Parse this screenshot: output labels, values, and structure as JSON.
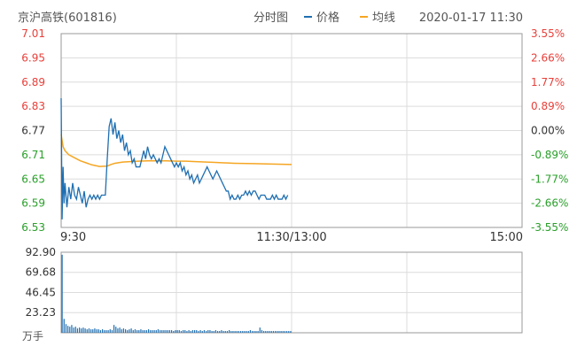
{
  "header": {
    "title": "京沪高铁(601816)",
    "view_label": "分时图",
    "legend_price": "价格",
    "legend_avg": "均线",
    "timestamp": "2020-01-17 11:30"
  },
  "colors": {
    "price_line": "#1f6fb2",
    "avg_line": "#f5a623",
    "up": "#e8403a",
    "down": "#2aa02a",
    "neutral": "#333333",
    "volume": "#1f6fb2",
    "grid": "#dcdcdc",
    "frame": "#999999"
  },
  "chart_data": [
    {
      "type": "line",
      "subtype": "intraday-timeshare",
      "ylim": [
        6.53,
        7.01
      ],
      "y_ticks": [
        "7.01",
        "6.95",
        "6.89",
        "6.83",
        "6.77",
        "6.71",
        "6.65",
        "6.59",
        "6.53"
      ],
      "y_ticks_right": [
        "3.55%",
        "2.66%",
        "1.77%",
        "0.89%",
        "0.00%",
        "-0.89%",
        "-1.77%",
        "-2.66%",
        "-3.55%"
      ],
      "x_tick_labels": [
        "9:30",
        "11:30/13:00",
        "15:00"
      ],
      "x_minutes_total": 240,
      "series": [
        {
          "name": "价格",
          "minutes": [
            0,
            0.5,
            1,
            1.5,
            2,
            3,
            4,
            5,
            6,
            7,
            8,
            9,
            10,
            11,
            12,
            13,
            14,
            15,
            16,
            17,
            18,
            19,
            20,
            21,
            22,
            23,
            24,
            25,
            26,
            27,
            28,
            29,
            30,
            31,
            32,
            33,
            34,
            35,
            36,
            37,
            38,
            39,
            40,
            41,
            42,
            43,
            44,
            45,
            46,
            47,
            48,
            49,
            50,
            51,
            52,
            53,
            54,
            55,
            56,
            57,
            58,
            59,
            60,
            61,
            62,
            63,
            64,
            65,
            66,
            67,
            68,
            69,
            70,
            71,
            72,
            73,
            74,
            75,
            76,
            77,
            78,
            79,
            80,
            81,
            82,
            83,
            84,
            85,
            86,
            87,
            88,
            89,
            90,
            91,
            92,
            93,
            94,
            95,
            96,
            97,
            98,
            99,
            100,
            101,
            102,
            103,
            104,
            105,
            106,
            107,
            108,
            109,
            110,
            111,
            112,
            113,
            114,
            115,
            116,
            117,
            118,
            119,
            120
          ],
          "values": [
            6.85,
            6.55,
            6.68,
            6.59,
            6.64,
            6.58,
            6.63,
            6.6,
            6.64,
            6.61,
            6.6,
            6.63,
            6.61,
            6.59,
            6.62,
            6.58,
            6.6,
            6.61,
            6.6,
            6.61,
            6.6,
            6.61,
            6.6,
            6.61,
            6.61,
            6.61,
            6.7,
            6.78,
            6.8,
            6.76,
            6.79,
            6.75,
            6.77,
            6.74,
            6.76,
            6.72,
            6.74,
            6.71,
            6.72,
            6.69,
            6.7,
            6.68,
            6.68,
            6.68,
            6.7,
            6.72,
            6.7,
            6.73,
            6.71,
            6.7,
            6.71,
            6.7,
            6.69,
            6.7,
            6.69,
            6.71,
            6.73,
            6.72,
            6.71,
            6.7,
            6.69,
            6.68,
            6.69,
            6.68,
            6.69,
            6.67,
            6.68,
            6.66,
            6.67,
            6.65,
            6.66,
            6.64,
            6.65,
            6.66,
            6.64,
            6.65,
            6.66,
            6.67,
            6.68,
            6.67,
            6.66,
            6.65,
            6.66,
            6.67,
            6.66,
            6.65,
            6.64,
            6.63,
            6.62,
            6.62,
            6.6,
            6.61,
            6.6,
            6.6,
            6.61,
            6.6,
            6.61,
            6.61,
            6.62,
            6.61,
            6.62,
            6.61,
            6.62,
            6.62,
            6.61,
            6.6,
            6.61,
            6.61,
            6.61,
            6.6,
            6.6,
            6.6,
            6.61,
            6.6,
            6.61,
            6.6,
            6.6,
            6.6,
            6.61,
            6.6,
            6.61
          ]
        },
        {
          "name": "均线",
          "minutes": [
            0,
            1,
            2,
            4,
            6,
            8,
            10,
            13,
            16,
            20,
            24,
            26,
            28,
            32,
            36,
            40,
            45,
            50,
            55,
            60,
            65,
            70,
            80,
            90,
            100,
            110,
            120
          ],
          "values": [
            6.76,
            6.73,
            6.72,
            6.71,
            6.705,
            6.7,
            6.695,
            6.69,
            6.685,
            6.681,
            6.682,
            6.686,
            6.689,
            6.692,
            6.693,
            6.694,
            6.695,
            6.695,
            6.695,
            6.694,
            6.694,
            6.693,
            6.691,
            6.689,
            6.688,
            6.687,
            6.686
          ]
        }
      ]
    },
    {
      "type": "bar",
      "subtype": "volume",
      "ylim": [
        0,
        92.9
      ],
      "y_ticks": [
        "92.90",
        "69.68",
        "46.45",
        "23.23"
      ],
      "unit": "万手",
      "minutes": [
        0,
        1,
        2,
        3,
        4,
        5,
        6,
        7,
        8,
        9,
        10,
        11,
        12,
        13,
        14,
        15,
        16,
        17,
        18,
        19,
        20,
        21,
        22,
        23,
        24,
        25,
        26,
        27,
        28,
        29,
        30,
        31,
        32,
        33,
        34,
        35,
        36,
        37,
        38,
        39,
        40,
        41,
        42,
        43,
        44,
        45,
        46,
        47,
        48,
        49,
        50,
        51,
        52,
        53,
        54,
        55,
        56,
        57,
        58,
        59,
        60,
        61,
        62,
        63,
        64,
        65,
        66,
        67,
        68,
        69,
        70,
        71,
        72,
        73,
        74,
        75,
        76,
        77,
        78,
        79,
        80,
        81,
        82,
        83,
        84,
        85,
        86,
        87,
        88,
        89,
        90,
        91,
        92,
        93,
        94,
        95,
        96,
        97,
        98,
        99,
        100,
        101,
        102,
        103,
        104,
        105,
        106,
        107,
        108,
        109,
        110,
        111,
        112,
        113,
        114,
        115,
        116,
        117,
        118,
        119
      ],
      "values": [
        90,
        16,
        10,
        8,
        7,
        9,
        6,
        7,
        5,
        6,
        5,
        6,
        5,
        4,
        5,
        4,
        4,
        5,
        4,
        4,
        3,
        4,
        3,
        3,
        3,
        4,
        3,
        9,
        7,
        5,
        6,
        4,
        5,
        4,
        3,
        4,
        5,
        3,
        4,
        3,
        3,
        4,
        3,
        3,
        3,
        4,
        3,
        3,
        3,
        3,
        4,
        3,
        3,
        3,
        3,
        3,
        3,
        3,
        2,
        3,
        3,
        3,
        2,
        3,
        3,
        2,
        3,
        2,
        3,
        3,
        3,
        2,
        3,
        2,
        3,
        2,
        3,
        3,
        2,
        2,
        3,
        2,
        2,
        3,
        2,
        2,
        2,
        3,
        2,
        2,
        2,
        2,
        2,
        2,
        2,
        2,
        2,
        2,
        3,
        2,
        2,
        2,
        2,
        6,
        3,
        2,
        2,
        2,
        2,
        2,
        2,
        2,
        2,
        2,
        2,
        2,
        2,
        2,
        2,
        2
      ]
    }
  ]
}
